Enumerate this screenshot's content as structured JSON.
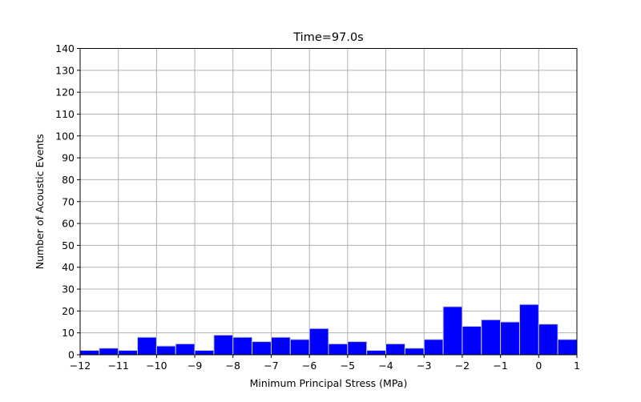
{
  "chart_data": {
    "type": "bar",
    "title": "Time=97.0s",
    "xlabel": "Minimum Principal Stress (MPa)",
    "ylabel": "Number of Acoustic Events",
    "xlim": [
      -12,
      1
    ],
    "ylim": [
      0,
      140
    ],
    "grid": true,
    "xticks": [
      -12,
      -11,
      -10,
      -9,
      -8,
      -7,
      -6,
      -5,
      -4,
      -3,
      -2,
      -1,
      0,
      1
    ],
    "xtick_labels": [
      "−12",
      "−11",
      "−10",
      "−9",
      "−8",
      "−7",
      "−6",
      "−5",
      "−4",
      "−3",
      "−2",
      "−1",
      "0",
      "1"
    ],
    "yticks": [
      0,
      10,
      20,
      30,
      40,
      50,
      60,
      70,
      80,
      90,
      100,
      110,
      120,
      130,
      140
    ],
    "ytick_labels": [
      "0",
      "10",
      "20",
      "30",
      "40",
      "50",
      "60",
      "70",
      "80",
      "90",
      "100",
      "110",
      "120",
      "130",
      "140"
    ],
    "bin_edges": [
      -12,
      -11.5,
      -11,
      -10.5,
      -10,
      -9.5,
      -9,
      -8.5,
      -8,
      -7.5,
      -7,
      -6.5,
      -6,
      -5.5,
      -5,
      -4.5,
      -4,
      -3.5,
      -3,
      -2.5,
      -2,
      -1.5,
      -1,
      -0.5,
      0,
      0.5,
      1
    ],
    "values": [
      2,
      3,
      2,
      8,
      4,
      5,
      2,
      9,
      8,
      6,
      8,
      7,
      12,
      5,
      6,
      2,
      5,
      3,
      7,
      22,
      13,
      16,
      15,
      23,
      14,
      7
    ],
    "bar_color": "#0000ff",
    "bar_edge_color": "#cccccc",
    "grid_color": "#b0b0b0"
  }
}
